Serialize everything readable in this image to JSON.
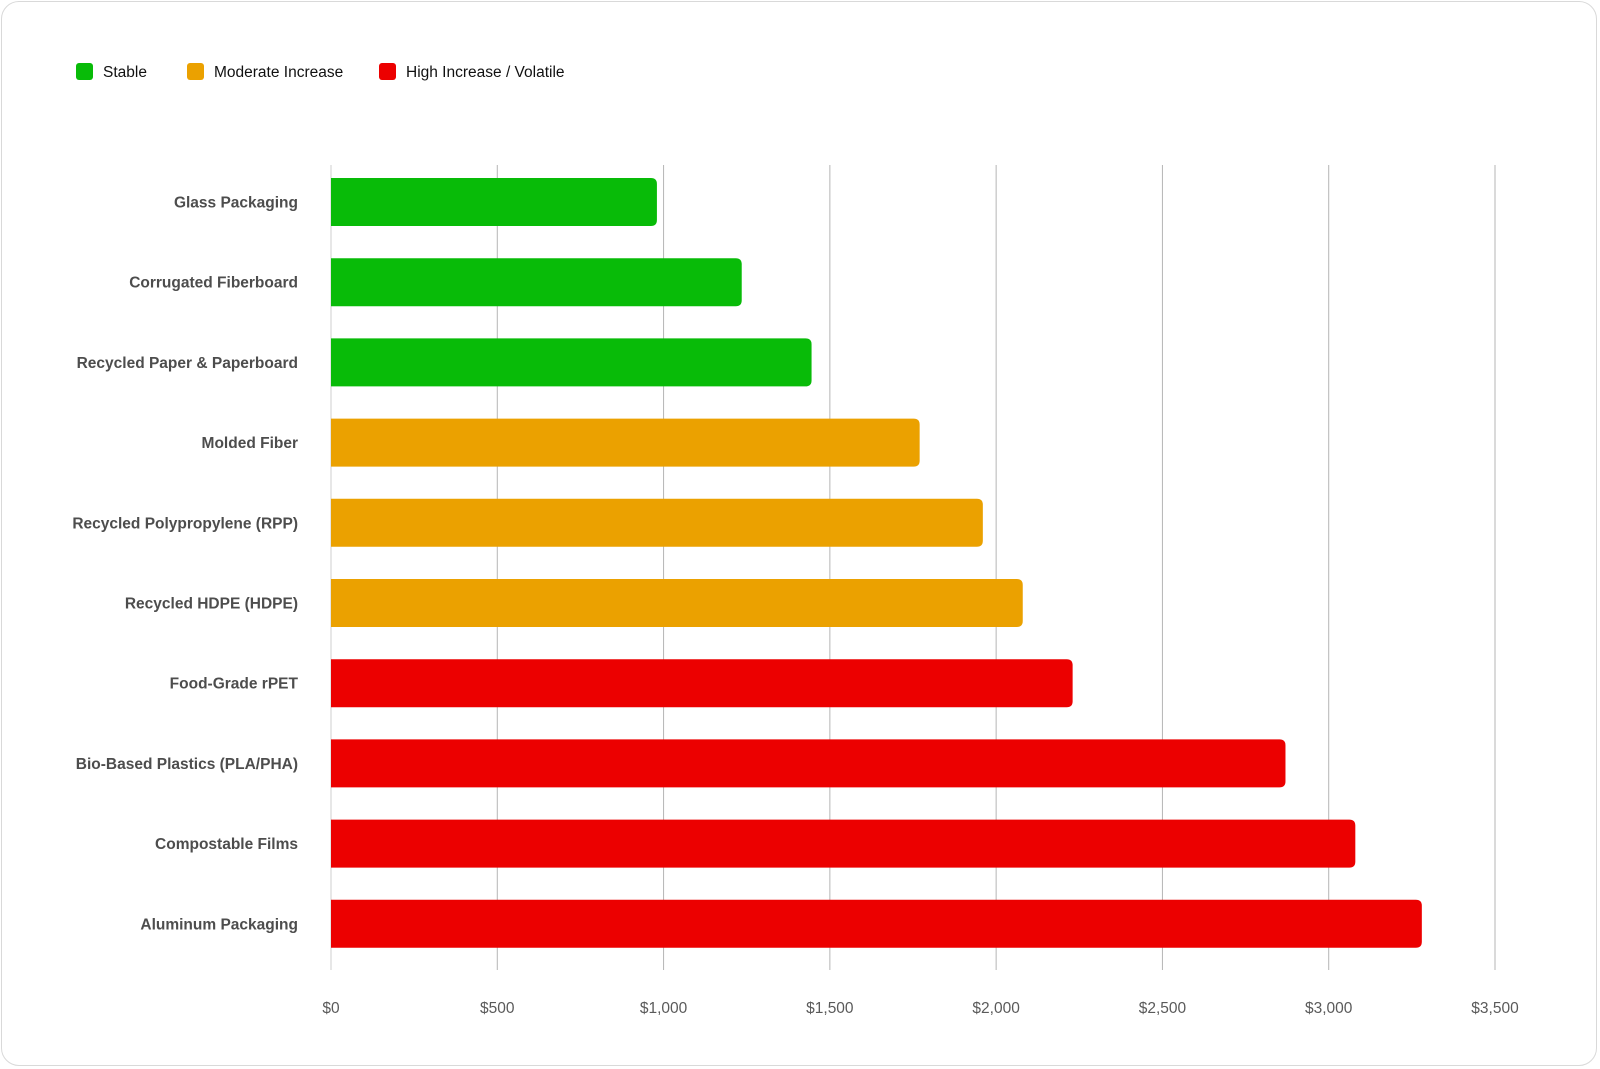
{
  "chart_data": {
    "type": "bar",
    "orientation": "horizontal",
    "categories": [
      "Glass Packaging",
      "Corrugated Fiberboard",
      "Recycled Paper & Paperboard",
      "Molded Fiber",
      "Recycled Polypropylene (RPP)",
      "Recycled HDPE (HDPE)",
      "Food-Grade rPET",
      "Bio-Based Plastics (PLA/PHA)",
      "Compostable Films",
      "Aluminum Packaging"
    ],
    "values": [
      980,
      1235,
      1445,
      1770,
      1960,
      2080,
      2230,
      2870,
      3080,
      3280
    ],
    "value_status": [
      "Stable",
      "Stable",
      "Stable",
      "Moderate Increase",
      "Moderate Increase",
      "Moderate Increase",
      "High Increase / Volatile",
      "High Increase / Volatile",
      "High Increase / Volatile",
      "High Increase / Volatile"
    ],
    "xlim": [
      0,
      3500
    ],
    "ticks": [
      0,
      500,
      1000,
      1500,
      2000,
      2500,
      3000,
      3500
    ],
    "tick_labels": [
      "$0",
      "$500",
      "$1,000",
      "$1,500",
      "$2,000",
      "$2,500",
      "$3,000",
      "$3,500"
    ],
    "legend": [
      {
        "label": "Stable",
        "color": "#08bb08"
      },
      {
        "label": "Moderate Increase",
        "color": "#eba100"
      },
      {
        "label": "High Increase / Volatile",
        "color": "#ec0000"
      }
    ],
    "legend_position": "top-left",
    "grid": "vertical",
    "title": "",
    "xlabel": "",
    "ylabel": ""
  }
}
